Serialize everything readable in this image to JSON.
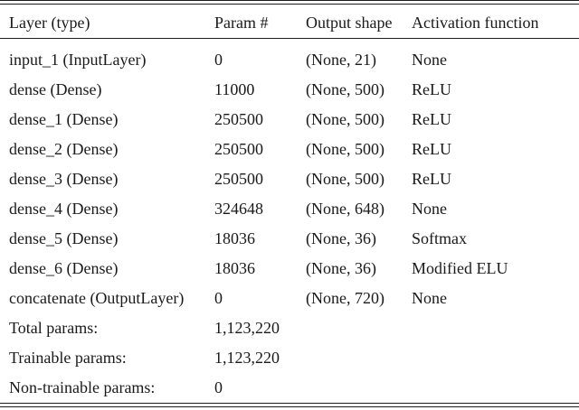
{
  "style": {
    "background_color": "#ffffff",
    "text_color": "#1a1a1a",
    "rule_color": "#1c1c1c"
  },
  "table": {
    "columns": [
      "Layer (type)",
      "Param #",
      "Output shape",
      "Activation function"
    ],
    "rows": [
      {
        "layer": "input_1 (InputLayer)",
        "params": "0",
        "output_shape": "(None, 21)",
        "activation": "None"
      },
      {
        "layer": "dense (Dense)",
        "params": "11000",
        "output_shape": "(None, 500)",
        "activation": "ReLU"
      },
      {
        "layer": "dense_1 (Dense)",
        "params": "250500",
        "output_shape": "(None, 500)",
        "activation": "ReLU"
      },
      {
        "layer": "dense_2 (Dense)",
        "params": "250500",
        "output_shape": "(None, 500)",
        "activation": "ReLU"
      },
      {
        "layer": "dense_3 (Dense)",
        "params": "250500",
        "output_shape": "(None, 500)",
        "activation": "ReLU"
      },
      {
        "layer": "dense_4 (Dense)",
        "params": "324648",
        "output_shape": "(None, 648)",
        "activation": "None"
      },
      {
        "layer": "dense_5 (Dense)",
        "params": "18036",
        "output_shape": "(None, 36)",
        "activation": "Softmax"
      },
      {
        "layer": "dense_6 (Dense)",
        "params": "18036",
        "output_shape": "(None, 36)",
        "activation": "Modified ELU"
      },
      {
        "layer": "concatenate (OutputLayer)",
        "params": "0",
        "output_shape": "(None, 720)",
        "activation": "None"
      }
    ],
    "summary": [
      {
        "label": "Total params:",
        "value": "1,123,220"
      },
      {
        "label": "Trainable params:",
        "value": "1,123,220"
      },
      {
        "label": "Non-trainable params:",
        "value": "0"
      }
    ]
  }
}
